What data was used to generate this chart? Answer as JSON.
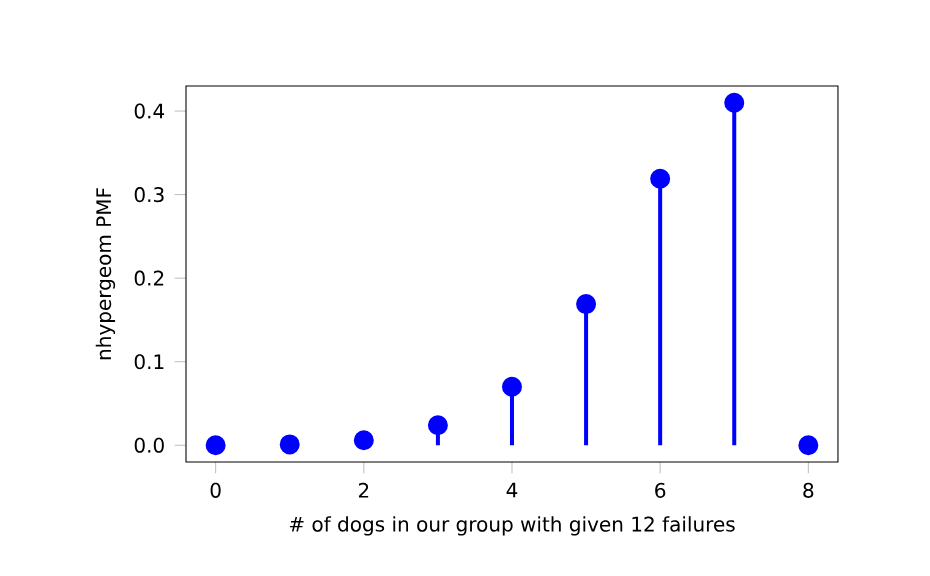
{
  "chart_data": {
    "type": "lollipop",
    "xlabel": "# of dogs in our group with given 12 failures",
    "ylabel": "nhypergeom PMF",
    "x": [
      0,
      1,
      2,
      3,
      4,
      5,
      6,
      7,
      8
    ],
    "series": [
      {
        "color": "#0000ff",
        "values": [
          0,
          0.001,
          0.006,
          0.024,
          0.07,
          0.169,
          0.319,
          0.41,
          0
        ]
      }
    ],
    "marker": "circle",
    "xlim": [
      -0.4,
      8.4
    ],
    "ylim": [
      -0.02,
      0.43
    ],
    "xticks": [
      0,
      2,
      4,
      6,
      8
    ],
    "yticks": [
      {
        "value": 0,
        "label": "0.0"
      },
      {
        "value": 0.1,
        "label": "0.1"
      },
      {
        "value": 0.2,
        "label": "0.2"
      },
      {
        "value": 0.3,
        "label": "0.3"
      },
      {
        "value": 0.4,
        "label": "0.4"
      }
    ],
    "grid": false
  }
}
